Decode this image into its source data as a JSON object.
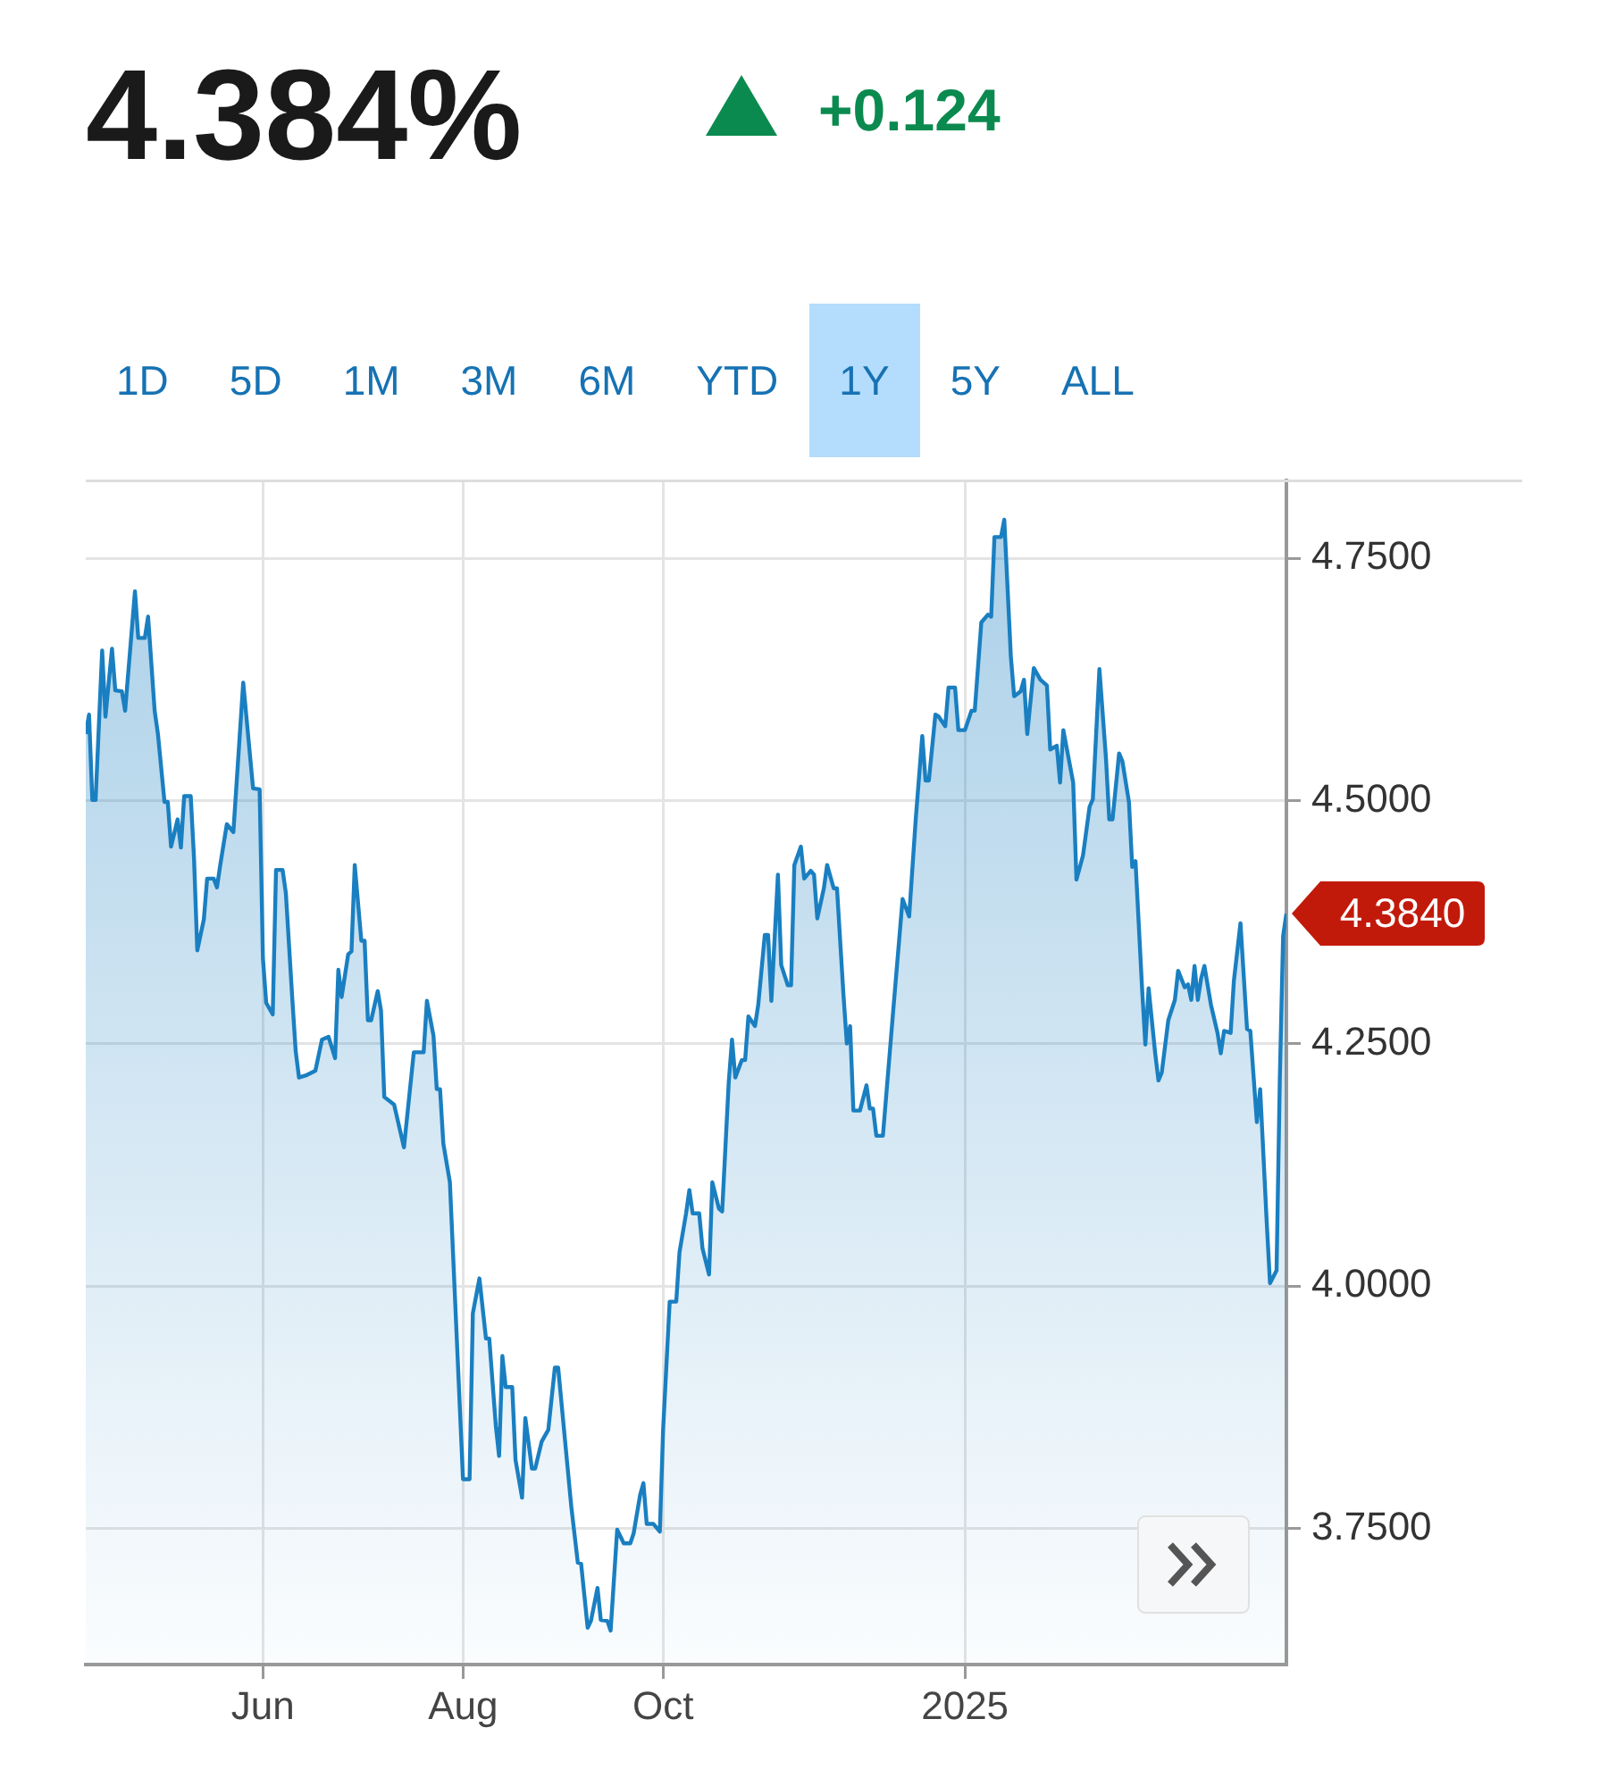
{
  "chart_data": {
    "type": "area",
    "title": "4.384%",
    "subtitle": "+0.124",
    "annotations": [
      "1D",
      "5D",
      "1M",
      "3M",
      "6M",
      "YTD",
      "1Y",
      "5Y",
      "ALL",
      {
        "text": "4.3840",
        "x": "2025-04-09",
        "y": 4.384
      }
    ],
    "x": [
      "2024-04-08",
      "2024-04-09",
      "2024-04-10",
      "2024-04-11",
      "2024-04-13",
      "2024-04-14",
      "2024-04-16",
      "2024-04-17",
      "2024-04-19",
      "2024-04-20",
      "2024-04-23",
      "2024-04-24",
      "2024-04-26",
      "2024-04-27",
      "2024-04-29",
      "2024-04-30",
      "2024-05-02",
      "2024-05-03",
      "2024-05-04",
      "2024-05-06",
      "2024-05-07",
      "2024-05-08",
      "2024-05-10",
      "2024-05-11",
      "2024-05-12",
      "2024-05-14",
      "2024-05-15",
      "2024-05-17",
      "2024-05-18",
      "2024-05-19",
      "2024-05-21",
      "2024-05-23",
      "2024-05-26",
      "2024-05-29",
      "2024-05-31",
      "2024-06-01",
      "2024-06-02",
      "2024-06-04",
      "2024-06-05",
      "2024-06-07",
      "2024-06-08",
      "2024-06-10",
      "2024-06-11",
      "2024-06-12",
      "2024-06-14",
      "2024-06-17",
      "2024-06-19",
      "2024-06-21",
      "2024-06-23",
      "2024-06-24",
      "2024-06-25",
      "2024-06-27",
      "2024-06-28",
      "2024-06-29",
      "2024-07-01",
      "2024-07-02",
      "2024-07-03",
      "2024-07-04",
      "2024-07-06",
      "2024-07-07",
      "2024-07-08",
      "2024-07-11",
      "2024-07-14",
      "2024-07-17",
      "2024-07-20",
      "2024-07-21",
      "2024-07-23",
      "2024-07-24",
      "2024-07-25",
      "2024-07-26",
      "2024-07-28",
      "2024-08-01",
      "2024-08-03",
      "2024-08-04",
      "2024-08-06",
      "2024-08-08",
      "2024-08-09",
      "2024-08-11",
      "2024-08-12",
      "2024-08-13",
      "2024-08-14",
      "2024-08-16",
      "2024-08-17",
      "2024-08-19",
      "2024-08-20",
      "2024-08-22",
      "2024-08-23",
      "2024-08-25",
      "2024-08-27",
      "2024-08-29",
      "2024-08-30",
      "2024-09-03",
      "2024-09-05",
      "2024-09-06",
      "2024-09-08",
      "2024-09-09",
      "2024-09-11",
      "2024-09-12",
      "2024-09-14",
      "2024-09-15",
      "2024-09-17",
      "2024-09-19",
      "2024-09-21",
      "2024-09-22",
      "2024-09-24",
      "2024-09-25",
      "2024-09-26",
      "2024-09-28",
      "2024-09-30",
      "2024-10-01",
      "2024-10-03",
      "2024-10-05",
      "2024-10-06",
      "2024-10-08",
      "2024-10-09",
      "2024-10-10",
      "2024-10-12",
      "2024-10-13",
      "2024-10-15",
      "2024-10-16",
      "2024-10-18",
      "2024-10-19",
      "2024-10-21",
      "2024-10-22",
      "2024-10-23",
      "2024-10-25",
      "2024-10-26",
      "2024-10-27",
      "2024-10-29",
      "2024-10-30",
      "2024-11-01",
      "2024-11-02",
      "2024-11-03",
      "2024-11-05",
      "2024-11-06",
      "2024-11-08",
      "2024-11-09",
      "2024-11-10",
      "2024-11-12",
      "2024-11-13",
      "2024-11-15",
      "2024-11-16",
      "2024-11-17",
      "2024-11-19",
      "2024-11-20",
      "2024-11-22",
      "2024-11-23",
      "2024-11-25",
      "2024-11-26",
      "2024-11-27",
      "2024-11-28",
      "2024-11-30",
      "2024-12-02",
      "2024-12-03",
      "2024-12-04",
      "2024-12-05",
      "2024-12-07",
      "2024-12-10",
      "2024-12-13",
      "2024-12-15",
      "2024-12-17",
      "2024-12-19",
      "2024-12-20",
      "2024-12-21",
      "2024-12-23",
      "2024-12-24",
      "2024-12-26",
      "2024-12-27",
      "2024-12-29",
      "2024-12-30",
      "2025-01-01",
      "2025-01-03",
      "2025-01-04",
      "2025-01-06",
      "2025-01-08",
      "2025-01-09",
      "2025-01-10",
      "2025-01-12",
      "2025-01-13",
      "2025-01-15",
      "2025-01-16",
      "2025-01-18",
      "2025-01-19",
      "2025-01-20",
      "2025-01-22",
      "2025-01-24",
      "2025-01-26",
      "2025-01-27",
      "2025-01-29",
      "2025-01-30",
      "2025-01-31",
      "2025-02-03",
      "2025-02-04",
      "2025-02-06",
      "2025-02-08",
      "2025-02-09",
      "2025-02-11",
      "2025-02-13",
      "2025-02-14",
      "2025-02-15",
      "2025-02-17",
      "2025-02-18",
      "2025-02-20",
      "2025-02-21",
      "2025-02-22",
      "2025-02-24",
      "2025-02-25",
      "2025-02-26",
      "2025-02-28",
      "2025-03-01",
      "2025-03-02",
      "2025-03-04",
      "2025-03-06",
      "2025-03-07",
      "2025-03-09",
      "2025-03-10",
      "2025-03-11",
      "2025-03-12",
      "2025-03-13",
      "2025-03-14",
      "2025-03-15",
      "2025-03-17",
      "2025-03-19",
      "2025-03-20",
      "2025-03-21",
      "2025-03-23",
      "2025-03-24",
      "2025-03-26",
      "2025-03-28",
      "2025-03-29",
      "2025-03-31",
      "2025-04-01",
      "2025-04-03",
      "2025-04-04",
      "2025-04-06",
      "2025-04-07",
      "2025-04-08",
      "2025-04-09"
    ],
    "series": [
      {
        "color": "#1a7fc1",
        "values": [
          4.569,
          4.589,
          4.501,
          4.501,
          4.655,
          4.587,
          4.657,
          4.614,
          4.613,
          4.593,
          4.716,
          4.668,
          4.668,
          4.69,
          4.593,
          4.569,
          4.499,
          4.499,
          4.453,
          4.481,
          4.452,
          4.505,
          4.505,
          4.441,
          4.346,
          4.378,
          4.42,
          4.42,
          4.411,
          4.434,
          4.476,
          4.468,
          4.622,
          4.513,
          4.512,
          4.338,
          4.292,
          4.28,
          4.429,
          4.429,
          4.405,
          4.294,
          4.242,
          4.215,
          4.217,
          4.222,
          4.254,
          4.257,
          4.235,
          4.326,
          4.298,
          4.342,
          4.345,
          4.434,
          4.356,
          4.356,
          4.274,
          4.274,
          4.304,
          4.284,
          4.195,
          4.187,
          4.143,
          4.241,
          4.241,
          4.294,
          4.258,
          4.203,
          4.203,
          4.147,
          4.107,
          3.801,
          3.801,
          3.972,
          4.008,
          3.946,
          3.946,
          3.856,
          3.825,
          3.928,
          3.896,
          3.896,
          3.821,
          3.782,
          3.864,
          3.812,
          3.812,
          3.84,
          3.852,
          3.916,
          3.916,
          3.773,
          3.715,
          3.714,
          3.648,
          3.655,
          3.689,
          3.656,
          3.655,
          3.645,
          3.749,
          3.735,
          3.735,
          3.745,
          3.785,
          3.797,
          3.755,
          3.755,
          3.747,
          3.852,
          3.984,
          3.984,
          4.035,
          4.075,
          4.099,
          4.075,
          4.075,
          4.039,
          4.012,
          4.107,
          4.08,
          4.077,
          4.21,
          4.254,
          4.215,
          4.233,
          4.233,
          4.278,
          4.268,
          4.29,
          4.362,
          4.362,
          4.294,
          4.424,
          4.331,
          4.31,
          4.31,
          4.434,
          4.453,
          4.42,
          4.428,
          4.424,
          4.379,
          4.41,
          4.434,
          4.41,
          4.41,
          4.299,
          4.25,
          4.268,
          4.181,
          4.181,
          4.207,
          4.183,
          4.183,
          4.155,
          4.155,
          4.278,
          4.399,
          4.381,
          4.481,
          4.567,
          4.521,
          4.521,
          4.589,
          4.587,
          4.577,
          4.617,
          4.617,
          4.573,
          4.573,
          4.593,
          4.593,
          4.684,
          4.692,
          4.69,
          4.772,
          4.772,
          4.79,
          4.649,
          4.608,
          4.613,
          4.625,
          4.569,
          4.637,
          4.625,
          4.619,
          4.553,
          4.557,
          4.519,
          4.573,
          4.519,
          4.419,
          4.444,
          4.494,
          4.502,
          4.636,
          4.544,
          4.481,
          4.481,
          4.549,
          4.541,
          4.499,
          4.432,
          4.438,
          4.307,
          4.249,
          4.307,
          4.24,
          4.212,
          4.22,
          4.274,
          4.295,
          4.325,
          4.308,
          4.311,
          4.295,
          4.33,
          4.295,
          4.317,
          4.33,
          4.29,
          4.261,
          4.24,
          4.263,
          4.261,
          4.315,
          4.374,
          4.265,
          4.263,
          4.169,
          4.203,
          4.066,
          4.003,
          4.016,
          4.215,
          4.361,
          4.384
        ]
      }
    ],
    "xlim": [
      "2024-04-08",
      "2025-04-09"
    ],
    "xticks": [
      {
        "value": "2024-06-01",
        "label": "Jun"
      },
      {
        "value": "2024-08-01",
        "label": "Aug"
      },
      {
        "value": "2024-10-01",
        "label": "Oct"
      },
      {
        "value": "2025-01-01",
        "label": "2025"
      }
    ],
    "ylim": [
      3.61,
      4.83
    ],
    "yticks": [
      {
        "value": 3.75,
        "label": "3.7500"
      },
      {
        "value": 4,
        "label": "4.0000"
      },
      {
        "value": 4.25,
        "label": "4.2500"
      },
      {
        "value": 4.5,
        "label": "4.5000"
      },
      {
        "value": 4.75,
        "label": "4.7500"
      }
    ],
    "grid": true,
    "legend": false,
    "marker": "none",
    "line_style": "solid"
  }
}
